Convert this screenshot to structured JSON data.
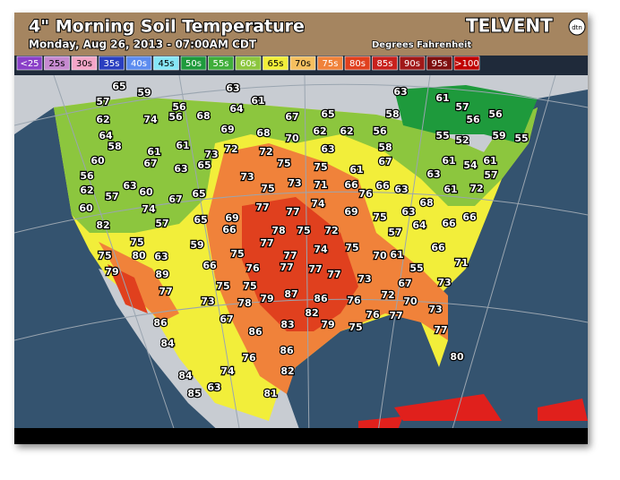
{
  "header": {
    "title": "4\" Morning Soil Temperature",
    "subtitle": "Monday, Aug 26, 2013 - 07:00AM CDT",
    "units": "Degrees Fahrenheit",
    "logo": "TELVENT",
    "logo_badge": "dtn"
  },
  "legend": [
    {
      "label": "<25",
      "color": "#8a3fc8"
    },
    {
      "label": "25s",
      "color": "#c68ad0"
    },
    {
      "label": "30s",
      "color": "#f3a6c8"
    },
    {
      "label": "35s",
      "color": "#2a3fc0"
    },
    {
      "label": "40s",
      "color": "#5c8cf0"
    },
    {
      "label": "45s",
      "color": "#86e6f6"
    },
    {
      "label": "50s",
      "color": "#1e9a3c"
    },
    {
      "label": "55s",
      "color": "#3fae3a"
    },
    {
      "label": "60s",
      "color": "#8cc63e"
    },
    {
      "label": "65s",
      "color": "#f2ee3a"
    },
    {
      "label": "70s",
      "color": "#f6c060"
    },
    {
      "label": "75s",
      "color": "#f0823a"
    },
    {
      "label": "80s",
      "color": "#e0401e"
    },
    {
      "label": "85s",
      "color": "#c8201c"
    },
    {
      "label": "90s",
      "color": "#a01818"
    },
    {
      "label": "95s",
      "color": "#7e1010"
    },
    {
      "label": ">100",
      "color": "#c00000"
    }
  ],
  "readings": [
    65,
    59,
    57,
    63,
    61,
    64,
    56,
    68,
    56,
    74,
    62,
    67,
    65,
    58,
    63,
    61,
    57,
    56,
    56,
    64,
    58,
    61,
    61,
    69,
    68,
    70,
    62,
    62,
    56,
    55,
    52,
    59,
    55,
    73,
    72,
    72,
    63,
    58,
    60,
    67,
    63,
    65,
    75,
    75,
    61,
    67,
    61,
    54,
    61,
    56,
    73,
    73,
    71,
    66,
    76,
    66,
    63,
    63,
    62,
    57,
    63,
    60,
    67,
    65,
    75,
    61,
    72,
    57,
    60,
    74,
    57,
    65,
    69,
    66,
    77,
    77,
    74,
    69,
    75,
    63,
    68,
    66,
    66,
    82,
    75,
    59,
    77,
    78,
    75,
    72,
    57,
    64,
    66,
    75,
    80,
    89,
    63,
    66,
    75,
    77,
    74,
    75,
    70,
    61,
    55,
    71,
    79,
    77,
    76,
    77,
    77,
    77,
    73,
    67,
    75,
    75,
    79,
    87,
    72,
    70,
    73,
    73,
    73,
    78,
    86,
    76,
    82,
    79,
    75,
    76,
    77,
    86,
    67,
    83,
    86,
    77,
    84,
    86,
    76,
    80,
    84,
    74,
    82,
    85,
    63,
    81
  ]
}
